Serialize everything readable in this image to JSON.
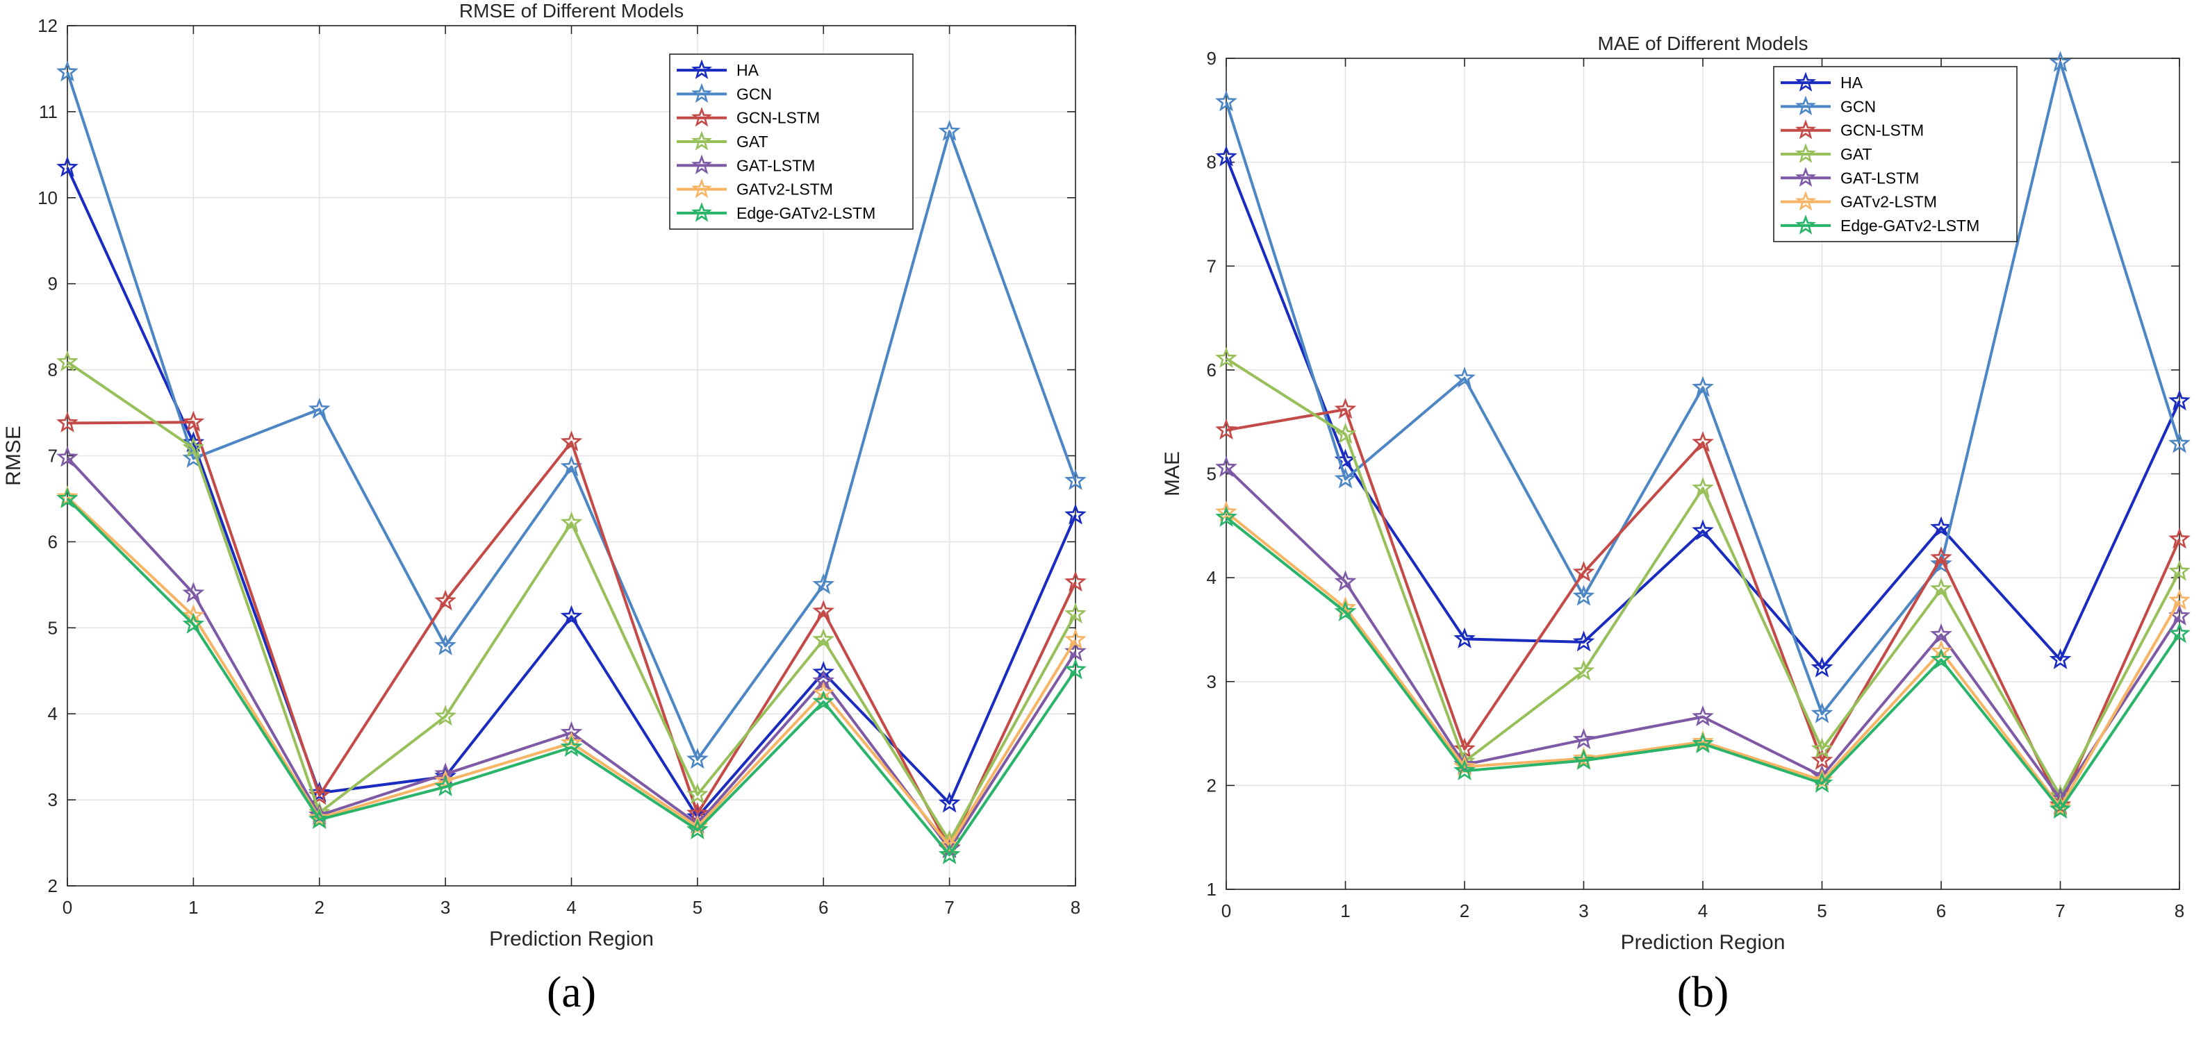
{
  "figure": {
    "panel_labels": [
      "(a)",
      "(b)"
    ]
  },
  "colors": {
    "HA": "#1a2cc0",
    "GCN": "#4d86c4",
    "GCN-LSTM": "#c44a48",
    "GAT": "#97c05a",
    "GAT-LSTM": "#7e5aa6",
    "GATv2-LSTM": "#f7b465",
    "Edge-GATv2-LSTM": "#2ab46a"
  },
  "chart_data": [
    {
      "type": "line",
      "title": "RMSE of Different Models",
      "xlabel": "Prediction Region",
      "ylabel": "RMSE",
      "x": [
        0,
        1,
        2,
        3,
        4,
        5,
        6,
        7,
        8
      ],
      "xlim": [
        0,
        8
      ],
      "ylim": [
        2,
        12
      ],
      "xticks": [
        0,
        1,
        2,
        3,
        4,
        5,
        6,
        7,
        8
      ],
      "yticks": [
        2,
        3,
        4,
        5,
        6,
        7,
        8,
        9,
        10,
        11,
        12
      ],
      "grid": true,
      "legend_position": "top-right",
      "marker": "star",
      "series": [
        {
          "name": "HA",
          "values": [
            10.35,
            7.15,
            3.08,
            3.27,
            5.13,
            2.8,
            4.48,
            2.96,
            6.31
          ]
        },
        {
          "name": "GCN",
          "values": [
            11.46,
            6.97,
            7.54,
            4.79,
            6.87,
            3.47,
            5.5,
            10.77,
            6.71
          ]
        },
        {
          "name": "GCN-LSTM",
          "values": [
            7.38,
            7.39,
            3.05,
            5.31,
            7.16,
            2.84,
            5.19,
            2.44,
            5.53
          ]
        },
        {
          "name": "GAT",
          "values": [
            8.09,
            7.09,
            2.85,
            3.97,
            6.22,
            3.06,
            4.86,
            2.52,
            5.16
          ]
        },
        {
          "name": "GAT-LSTM",
          "values": [
            6.98,
            5.4,
            2.82,
            3.3,
            3.78,
            2.72,
            4.38,
            2.43,
            4.72
          ]
        },
        {
          "name": "GATv2-LSTM",
          "values": [
            6.52,
            5.14,
            2.79,
            3.22,
            3.66,
            2.69,
            4.24,
            2.47,
            4.86
          ]
        },
        {
          "name": "Edge-GATv2-LSTM",
          "values": [
            6.5,
            5.04,
            2.77,
            3.15,
            3.61,
            2.65,
            4.14,
            2.36,
            4.51
          ]
        }
      ]
    },
    {
      "type": "line",
      "title": "MAE of Different Models",
      "xlabel": "Prediction Region",
      "ylabel": "MAE",
      "x": [
        0,
        1,
        2,
        3,
        4,
        5,
        6,
        7,
        8
      ],
      "xlim": [
        0,
        8
      ],
      "ylim": [
        1,
        9
      ],
      "xticks": [
        0,
        1,
        2,
        3,
        4,
        5,
        6,
        7,
        8
      ],
      "yticks": [
        1,
        2,
        3,
        4,
        5,
        6,
        7,
        8,
        9
      ],
      "grid": true,
      "legend_position": "top-right",
      "marker": "star",
      "series": [
        {
          "name": "HA",
          "values": [
            8.05,
            5.13,
            3.41,
            3.38,
            4.45,
            3.13,
            4.48,
            3.21,
            5.7
          ]
        },
        {
          "name": "GCN",
          "values": [
            8.58,
            4.95,
            5.92,
            3.82,
            5.83,
            2.69,
            4.13,
            8.96,
            5.29
          ]
        },
        {
          "name": "GCN-LSTM",
          "values": [
            5.42,
            5.62,
            2.35,
            4.05,
            5.3,
            2.24,
            4.19,
            1.81,
            4.37
          ]
        },
        {
          "name": "GAT",
          "values": [
            6.11,
            5.38,
            2.23,
            3.1,
            4.86,
            2.35,
            3.89,
            1.9,
            4.06
          ]
        },
        {
          "name": "GAT-LSTM",
          "values": [
            5.06,
            3.96,
            2.2,
            2.44,
            2.66,
            2.09,
            3.45,
            1.87,
            3.63
          ]
        },
        {
          "name": "GATv2-LSTM",
          "values": [
            4.63,
            3.71,
            2.18,
            2.26,
            2.42,
            2.05,
            3.29,
            1.79,
            3.78
          ]
        },
        {
          "name": "Edge-GATv2-LSTM",
          "values": [
            4.58,
            3.67,
            2.14,
            2.24,
            2.4,
            2.02,
            3.21,
            1.77,
            3.46
          ]
        }
      ]
    }
  ]
}
